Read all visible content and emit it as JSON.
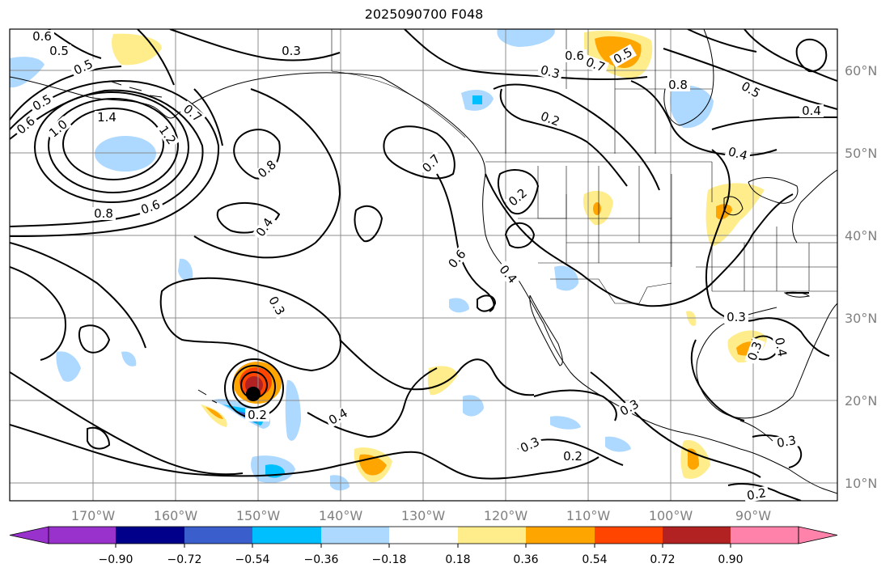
{
  "title": "2025090700 F048",
  "lon_labels": [
    "170°W",
    "160°W",
    "150°W",
    "140°W",
    "130°W",
    "120°W",
    "110°W",
    "100°W",
    "90°W"
  ],
  "lat_labels": [
    "60°N",
    "50°N",
    "40°N",
    "30°N",
    "20°N",
    "10°N"
  ],
  "colorbar": {
    "ticks": [
      "−0.90",
      "−0.72",
      "−0.54",
      "−0.36",
      "−0.18",
      "0.18",
      "0.36",
      "0.54",
      "0.72",
      "0.90"
    ],
    "colors": [
      "#9932cc",
      "#00008b",
      "#3a5fcd",
      "#00bfff",
      "#add8ff",
      "#ffffff",
      "#ffec8b",
      "#ffa500",
      "#ff4500",
      "#b22222",
      "#ff82ab"
    ]
  },
  "contour_labels": [
    "0.6",
    "0.5",
    "0.5",
    "0.5",
    "0.6",
    "1.0",
    "1.4",
    "1.2",
    "0.7",
    "0.8",
    "0.8",
    "0.6",
    "0.3",
    "0.4",
    "0.3",
    "0.7",
    "0.6",
    "0.4",
    "0.2",
    "0.3",
    "0.6",
    "0.5",
    "0.2",
    "0.7",
    "0.8",
    "0.5",
    "0.4",
    "0.4",
    "0.3",
    "0.3",
    "0.4",
    "0.4",
    "0.3",
    "0.2",
    "0.3",
    "0.2",
    "0.2",
    "0.3"
  ]
}
